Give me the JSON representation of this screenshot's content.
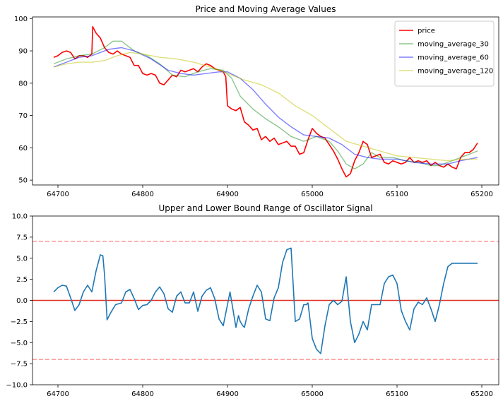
{
  "chart_data": [
    {
      "type": "line",
      "title": "Price and Moving Average Values",
      "xlim": [
        64670,
        65220
      ],
      "ylim": [
        48.5,
        100.5
      ],
      "xticks": [
        64700,
        64800,
        64900,
        65000,
        65100,
        65200
      ],
      "yticks": [
        50,
        60,
        70,
        80,
        90,
        100
      ],
      "legend_position": "top-right",
      "series": [
        {
          "name": "price",
          "color": "#ff0000",
          "x": [
            64695,
            64700,
            64705,
            64710,
            64715,
            64720,
            64725,
            64730,
            64735,
            64740,
            64741,
            64745,
            64750,
            64755,
            64760,
            64765,
            64770,
            64775,
            64780,
            64785,
            64790,
            64795,
            64800,
            64805,
            64810,
            64815,
            64820,
            64825,
            64830,
            64835,
            64840,
            64845,
            64850,
            64855,
            64860,
            64865,
            64870,
            64875,
            64880,
            64885,
            64890,
            64895,
            64898,
            64900,
            64905,
            64910,
            64915,
            64920,
            64925,
            64930,
            64935,
            64940,
            64945,
            64950,
            64955,
            64960,
            64965,
            64970,
            64975,
            64980,
            64985,
            64990,
            64995,
            65000,
            65005,
            65010,
            65015,
            65020,
            65025,
            65030,
            65035,
            65040,
            65045,
            65050,
            65055,
            65060,
            65065,
            65070,
            65075,
            65080,
            65085,
            65090,
            65095,
            65100,
            65105,
            65110,
            65115,
            65120,
            65125,
            65130,
            65135,
            65140,
            65145,
            65150,
            65155,
            65160,
            65165,
            65170,
            65175,
            65180,
            65185,
            65190,
            65195
          ],
          "y": [
            88,
            88.5,
            89.5,
            90,
            89.5,
            87.5,
            88.5,
            88.5,
            88,
            89,
            97.5,
            95.5,
            94,
            91,
            89.5,
            89,
            90,
            89,
            88.5,
            88,
            85.5,
            85.5,
            83,
            82.5,
            83,
            82.5,
            80,
            79.5,
            81,
            82.5,
            82,
            84,
            83.5,
            84,
            84.5,
            83.5,
            85,
            86,
            85.5,
            84.5,
            84,
            83.5,
            82,
            73,
            72,
            71.5,
            72.5,
            68,
            67,
            65.5,
            66,
            62.5,
            63.5,
            62,
            63,
            61,
            61.5,
            62,
            60.5,
            60.5,
            58,
            58.5,
            62.5,
            66,
            64.5,
            63.5,
            63,
            61,
            59,
            56.5,
            53.5,
            51,
            52,
            56,
            58.5,
            62,
            61,
            57,
            57.5,
            58,
            55.5,
            55,
            56,
            55.5,
            55,
            55.5,
            57,
            55.5,
            56,
            55.5,
            56,
            54.5,
            55.5,
            54.5,
            54,
            55,
            54,
            53.5,
            57,
            58.5,
            58.5,
            59.5,
            61.5
          ]
        },
        {
          "name": "moving_average_30",
          "color": "#008000",
          "x": [
            64695,
            64710,
            64725,
            64740,
            64755,
            64765,
            64775,
            64790,
            64805,
            64820,
            64835,
            64850,
            64865,
            64880,
            64895,
            64905,
            64915,
            64930,
            64945,
            64960,
            64975,
            64990,
            65005,
            65020,
            65030,
            65040,
            65050,
            65060,
            65070,
            65080,
            65095,
            65110,
            65125,
            65140,
            65150,
            65160,
            65170,
            65180,
            65195
          ],
          "y": [
            86,
            87.5,
            88.5,
            89,
            91,
            93,
            93,
            90,
            88.5,
            86,
            82.5,
            82,
            83.5,
            84.5,
            84,
            81.5,
            76,
            72,
            69,
            66.5,
            63.5,
            62,
            63.5,
            62,
            59,
            55,
            53.5,
            55,
            58.5,
            57,
            57,
            56,
            55.5,
            54.5,
            54.5,
            55.5,
            56.5,
            57.5,
            59
          ]
        },
        {
          "name": "moving_average_60",
          "color": "#0000ff",
          "x": [
            64695,
            64710,
            64725,
            64740,
            64760,
            64775,
            64790,
            64810,
            64830,
            64845,
            64860,
            64875,
            64890,
            64900,
            64915,
            64930,
            64945,
            64960,
            64975,
            64990,
            65005,
            65020,
            65035,
            65050,
            65065,
            65080,
            65100,
            65120,
            65140,
            65160,
            65175,
            65195
          ],
          "y": [
            85,
            86.5,
            88,
            88.5,
            90.5,
            91,
            90,
            87.5,
            84,
            83,
            82.5,
            83,
            83.5,
            83.5,
            81.5,
            78,
            73.5,
            69.5,
            66.5,
            64,
            63.5,
            63,
            61,
            58,
            57,
            56.5,
            56.5,
            55.5,
            55,
            55,
            56,
            57
          ]
        },
        {
          "name": "moving_average_120",
          "color": "#bfbf00",
          "x": [
            64695,
            64710,
            64725,
            64740,
            64755,
            64770,
            64785,
            64800,
            64820,
            64840,
            64860,
            64880,
            64900,
            64920,
            64940,
            64960,
            64980,
            65000,
            65020,
            65040,
            65060,
            65080,
            65100,
            65120,
            65140,
            65160,
            65180,
            65195
          ],
          "y": [
            85,
            86,
            86.5,
            86.5,
            87,
            88.5,
            89.5,
            89,
            88,
            87.5,
            86.5,
            85,
            83,
            81,
            79.5,
            77,
            73,
            70,
            66,
            62,
            60.5,
            59,
            57.5,
            57,
            56.5,
            56,
            56.5,
            56.5
          ]
        }
      ]
    },
    {
      "type": "line",
      "title": "Upper and Lower Bound Range of Oscillator Signal",
      "xlim": [
        64670,
        65220
      ],
      "ylim": [
        -10,
        10
      ],
      "xticks": [
        64700,
        64800,
        64900,
        65000,
        65100,
        65200
      ],
      "yticks": [
        -10.0,
        -7.5,
        -5.0,
        -2.5,
        0.0,
        2.5,
        5.0,
        7.5,
        10.0
      ],
      "ytick_labels": [
        "−10.0",
        "−7.5",
        "−5.0",
        "−2.5",
        "0.0",
        "2.5",
        "5.0",
        "7.5",
        "10.0"
      ],
      "reference_lines": [
        {
          "y": 7,
          "color": "#ff8080",
          "style": "dashed"
        },
        {
          "y": 0,
          "color": "#e03020",
          "style": "solid"
        },
        {
          "y": -7,
          "color": "#ff8080",
          "style": "dashed"
        }
      ],
      "series": [
        {
          "color": "#1f77b4",
          "x": [
            64695,
            64700,
            64705,
            64710,
            64715,
            64720,
            64725,
            64730,
            64735,
            64740,
            64745,
            64750,
            64753,
            64755,
            64758,
            64762,
            64768,
            64775,
            64780,
            64785,
            64790,
            64795,
            64800,
            64805,
            64810,
            64815,
            64820,
            64825,
            64830,
            64835,
            64840,
            64845,
            64850,
            64855,
            64860,
            64865,
            64870,
            64875,
            64880,
            64885,
            64890,
            64895,
            64900,
            64903,
            64905,
            64910,
            64913,
            64915,
            64918,
            64920,
            64925,
            64930,
            64935,
            64940,
            64945,
            64950,
            64955,
            64960,
            64965,
            64970,
            64975,
            64980,
            64985,
            64990,
            64993,
            64995,
            65000,
            65005,
            65010,
            65015,
            65020,
            65025,
            65030,
            65035,
            65040,
            65045,
            65050,
            65055,
            65060,
            65065,
            65070,
            65075,
            65080,
            65085,
            65090,
            65095,
            65100,
            65105,
            65110,
            65115,
            65120,
            65125,
            65130,
            65135,
            65140,
            65145,
            65150,
            65155,
            65160,
            65165,
            65170,
            65175,
            65180,
            65185,
            65190,
            65195
          ],
          "y": [
            1.0,
            1.5,
            1.8,
            1.7,
            0.3,
            -1.2,
            -0.5,
            1.0,
            1.8,
            1.0,
            3.5,
            5.4,
            5.3,
            3.0,
            -2.3,
            -1.5,
            -0.5,
            -0.3,
            1.0,
            1.3,
            0.2,
            -1.1,
            -0.6,
            -0.5,
            0.0,
            1.0,
            1.6,
            0.8,
            -1.0,
            -1.4,
            0.5,
            1.0,
            -0.3,
            -0.3,
            1.0,
            -1.3,
            0.5,
            1.2,
            1.5,
            0.2,
            -2.2,
            -3.0,
            -0.5,
            1.0,
            -0.2,
            -3.2,
            -1.8,
            -2.5,
            -3.0,
            -3.2,
            -1.0,
            0.5,
            1.8,
            1.0,
            -2.2,
            -2.4,
            0.3,
            1.5,
            4.5,
            6.0,
            6.2,
            -2.5,
            -2.2,
            -0.5,
            -0.5,
            -0.3,
            -4.5,
            -5.8,
            -6.3,
            -3.0,
            -0.5,
            0.0,
            -0.5,
            -0.1,
            2.8,
            -2.5,
            -5.0,
            -4.0,
            -2.5,
            -3.5,
            -0.5,
            -0.5,
            -0.5,
            2.0,
            2.8,
            3.0,
            2.0,
            -1.2,
            -2.5,
            -3.5,
            -1.0,
            -0.2,
            -0.5,
            0.3,
            -1.0,
            -2.5,
            -0.5,
            2.0,
            4.0,
            4.4,
            4.4,
            4.4,
            4.4,
            4.4,
            4.4,
            4.4
          ]
        }
      ]
    }
  ]
}
